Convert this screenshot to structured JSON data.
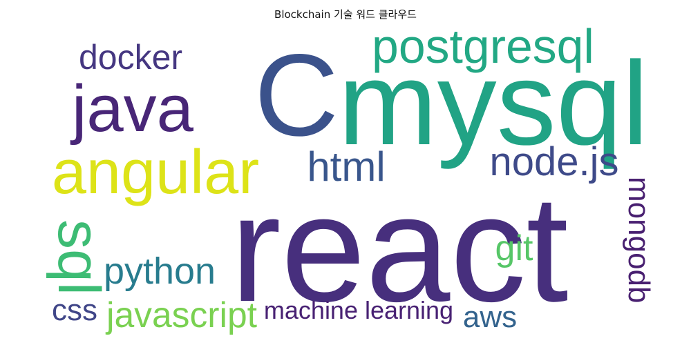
{
  "title": "Blockchain 기술 워드 클라우드",
  "words": [
    {
      "text": "C",
      "color": "#3b528b"
    },
    {
      "text": "react",
      "color": "#472f7d"
    },
    {
      "text": "mysql",
      "color": "#21a385"
    },
    {
      "text": "postgresql",
      "color": "#22a884"
    },
    {
      "text": "java",
      "color": "#482677"
    },
    {
      "text": "angular",
      "color": "#dde318"
    },
    {
      "text": "docker",
      "color": "#453781"
    },
    {
      "text": "html",
      "color": "#39568c"
    },
    {
      "text": "node.js",
      "color": "#3e4a89"
    },
    {
      "text": "mongodb",
      "color": "#481f70"
    },
    {
      "text": "sql",
      "color": "#3dbc74"
    },
    {
      "text": "python",
      "color": "#287c8e"
    },
    {
      "text": "git",
      "color": "#56c667"
    },
    {
      "text": "javascript",
      "color": "#7ad151"
    },
    {
      "text": "machine learning",
      "color": "#482173"
    },
    {
      "text": "css",
      "color": "#404688"
    },
    {
      "text": "aws",
      "color": "#33638d"
    }
  ]
}
